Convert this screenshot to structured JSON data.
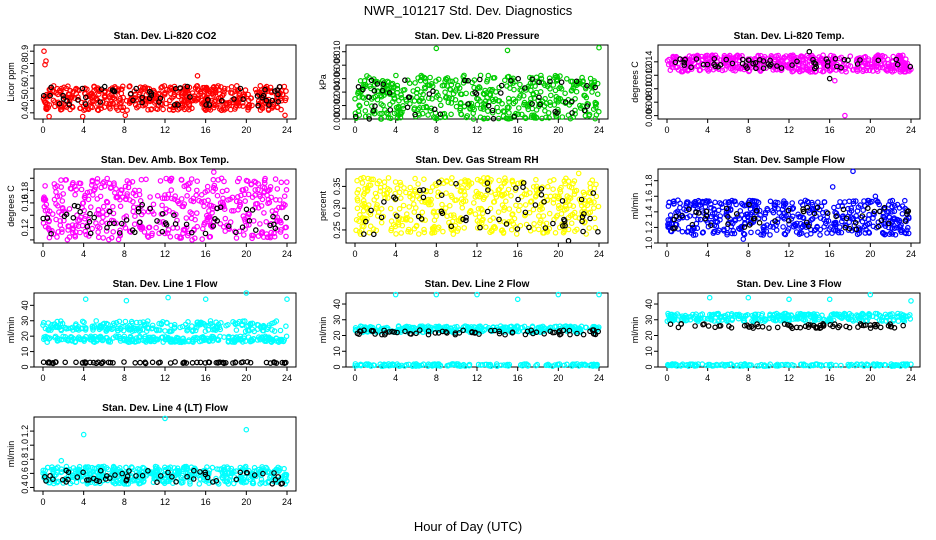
{
  "title": "NWR_101217  Std. Dev. Diagnostics",
  "xlabel": "Hour of Day (UTC)",
  "colors": {
    "red": "#ff0000",
    "green": "#00cc00",
    "magenta": "#ff00ff",
    "yellow": "#ffff00",
    "blue": "#0000ff",
    "cyan": "#00ffff",
    "black": "#000000"
  },
  "chart_data": [
    {
      "type": "scatter",
      "title": "Stan. Dev. Li-820 CO2",
      "ylabel": "Licor ppm",
      "xlim": [
        0,
        24
      ],
      "xticks": [
        0,
        4,
        8,
        12,
        16,
        20,
        24
      ],
      "ylim": [
        0.35,
        0.95
      ],
      "yticks": [
        0.4,
        0.5,
        0.6,
        0.7,
        0.8,
        0.9
      ],
      "ytick_labels": [
        "0.4",
        "0.5",
        "0.6",
        "0.7",
        "0.8",
        "0.9"
      ],
      "color": "red",
      "bands": [
        {
          "lo": 0.42,
          "hi": 0.62,
          "n": 520,
          "color": "red"
        },
        {
          "lo": 0.45,
          "hi": 0.62,
          "n": 55,
          "color": "black"
        }
      ],
      "outliers": [
        {
          "x": 0.1,
          "y": 0.9,
          "color": "red"
        },
        {
          "x": 0.3,
          "y": 0.82,
          "color": "red"
        },
        {
          "x": 0.2,
          "y": 0.79,
          "color": "red"
        },
        {
          "x": 0.6,
          "y": 0.37,
          "color": "red"
        },
        {
          "x": 3.9,
          "y": 0.37,
          "color": "red"
        },
        {
          "x": 8.1,
          "y": 0.38,
          "color": "red"
        },
        {
          "x": 15.2,
          "y": 0.7,
          "color": "red"
        },
        {
          "x": 23.8,
          "y": 0.38,
          "color": "red"
        }
      ]
    },
    {
      "type": "scatter",
      "title": "Stan. Dev. Li-820 Pressure",
      "ylabel": "kPa",
      "xlim": [
        0,
        24
      ],
      "xticks": [
        0,
        4,
        8,
        12,
        16,
        20,
        24
      ],
      "ylim": [
        0.0,
        0.011
      ],
      "yticks": [
        0.0,
        0.002,
        0.004,
        0.006,
        0.008,
        0.01
      ],
      "ytick_labels": [
        "0.000",
        "0.002",
        "0.004",
        "0.006",
        "0.008",
        "0.010"
      ],
      "color": "green",
      "bands": [
        {
          "lo": 0.0,
          "hi": 0.0065,
          "n": 480,
          "color": "green"
        },
        {
          "lo": 0.0,
          "hi": 0.006,
          "n": 55,
          "color": "black"
        }
      ],
      "outliers": [
        {
          "x": 8.0,
          "y": 0.0105,
          "color": "green"
        },
        {
          "x": 15.0,
          "y": 0.0102,
          "color": "green"
        },
        {
          "x": 24.0,
          "y": 0.0106,
          "color": "green"
        }
      ]
    },
    {
      "type": "scatter",
      "title": "Stan. Dev. Li-820 Temp.",
      "ylabel": "degrees C",
      "xlim": [
        0,
        24
      ],
      "xticks": [
        0,
        4,
        8,
        12,
        16,
        20,
        24
      ],
      "ylim": [
        0.0055,
        0.0165
      ],
      "yticks": [
        0.006,
        0.008,
        0.01,
        0.012,
        0.014
      ],
      "ytick_labels": [
        "0.006",
        "0.008",
        "0.010",
        "0.012",
        "0.014"
      ],
      "color": "magenta",
      "bands": [
        {
          "lo": 0.0125,
          "hi": 0.015,
          "n": 480,
          "color": "magenta"
        },
        {
          "lo": 0.013,
          "hi": 0.0145,
          "n": 55,
          "color": "black"
        }
      ],
      "outliers": [
        {
          "x": 14.0,
          "y": 0.0155,
          "color": "black"
        },
        {
          "x": 16.0,
          "y": 0.0115,
          "color": "black"
        },
        {
          "x": 17.5,
          "y": 0.006,
          "color": "magenta"
        },
        {
          "x": 16.5,
          "y": 0.0112,
          "color": "magenta"
        }
      ]
    },
    {
      "type": "scatter",
      "title": "Stan. Dev. Amb. Box Temp.",
      "ylabel": "degrees C",
      "xlim": [
        0,
        24
      ],
      "xticks": [
        0,
        4,
        8,
        12,
        16,
        20,
        24
      ],
      "ylim": [
        0.095,
        0.215
      ],
      "yticks": [
        0.1,
        0.12,
        0.14,
        0.16,
        0.18,
        0.2
      ],
      "ytick_labels": [
        "",
        "0.12",
        "",
        "0.16",
        "0.18",
        ""
      ],
      "color": "magenta",
      "bands": [
        {
          "lo": 0.1,
          "hi": 0.2,
          "n": 480,
          "color": "magenta"
        },
        {
          "lo": 0.11,
          "hi": 0.16,
          "n": 55,
          "color": "black"
        }
      ],
      "outliers": [
        {
          "x": 16.8,
          "y": 0.21,
          "color": "magenta"
        }
      ]
    },
    {
      "type": "scatter",
      "title": "Stan. Dev. Gas Stream RH",
      "ylabel": "percent",
      "xlim": [
        0,
        24
      ],
      "xticks": [
        0,
        4,
        8,
        12,
        16,
        20,
        24
      ],
      "ylim": [
        0.22,
        0.39
      ],
      "yticks": [
        0.25,
        0.3,
        0.35
      ],
      "ytick_labels": [
        "0.25",
        "0.30",
        "0.35"
      ],
      "color": "yellow",
      "bands": [
        {
          "lo": 0.24,
          "hi": 0.37,
          "n": 480,
          "color": "yellow"
        },
        {
          "lo": 0.24,
          "hi": 0.36,
          "n": 55,
          "color": "black"
        }
      ],
      "outliers": [
        {
          "x": 22.0,
          "y": 0.38,
          "color": "yellow"
        },
        {
          "x": 21.0,
          "y": 0.225,
          "color": "black"
        }
      ]
    },
    {
      "type": "scatter",
      "title": "Stan. Dev. Sample Flow",
      "ylabel": "ml/min",
      "xlim": [
        0,
        24
      ],
      "xticks": [
        0,
        4,
        8,
        12,
        16,
        20,
        24
      ],
      "ylim": [
        1.0,
        1.95
      ],
      "yticks": [
        1.0,
        1.2,
        1.4,
        1.6,
        1.8
      ],
      "ytick_labels": [
        "1.0",
        "1.2",
        "1.4",
        "1.6",
        "1.8"
      ],
      "color": "blue",
      "bands": [
        {
          "lo": 1.1,
          "hi": 1.55,
          "n": 480,
          "color": "blue"
        },
        {
          "lo": 1.15,
          "hi": 1.5,
          "n": 55,
          "color": "black"
        }
      ],
      "outliers": [
        {
          "x": 16.3,
          "y": 1.72,
          "color": "blue"
        },
        {
          "x": 18.3,
          "y": 1.92,
          "color": "blue"
        },
        {
          "x": 20.5,
          "y": 1.6,
          "color": "blue"
        },
        {
          "x": 7.5,
          "y": 1.05,
          "color": "blue"
        }
      ]
    },
    {
      "type": "scatter",
      "title": "Stan. Dev. Line 1 Flow",
      "ylabel": "ml/min",
      "xlim": [
        0,
        24
      ],
      "xticks": [
        0,
        4,
        8,
        12,
        16,
        20,
        24
      ],
      "ylim": [
        0,
        48
      ],
      "yticks": [
        0,
        10,
        20,
        30,
        40
      ],
      "ytick_labels": [
        "0",
        "10",
        "20",
        "30",
        "40"
      ],
      "color": "cyan",
      "bands": [
        {
          "lo": 23,
          "hi": 30,
          "n": 220,
          "color": "cyan"
        },
        {
          "lo": 16,
          "hi": 20,
          "n": 260,
          "color": "cyan"
        },
        {
          "lo": 2.3,
          "hi": 3.3,
          "n": 70,
          "color": "black"
        }
      ],
      "outliers": [
        {
          "x": 4.2,
          "y": 44,
          "color": "cyan"
        },
        {
          "x": 8.2,
          "y": 43,
          "color": "cyan"
        },
        {
          "x": 12.3,
          "y": 45,
          "color": "cyan"
        },
        {
          "x": 16.0,
          "y": 44,
          "color": "cyan"
        },
        {
          "x": 20.0,
          "y": 48,
          "color": "cyan"
        },
        {
          "x": 24.0,
          "y": 44,
          "color": "cyan"
        }
      ]
    },
    {
      "type": "scatter",
      "title": "Stan. Dev. Line 2 Flow",
      "ylabel": "ml/min",
      "xlim": [
        0,
        24
      ],
      "xticks": [
        0,
        4,
        8,
        12,
        16,
        20,
        24
      ],
      "ylim": [
        0,
        47
      ],
      "yticks": [
        0,
        10,
        20,
        30,
        40
      ],
      "ytick_labels": [
        "0",
        "10",
        "20",
        "30",
        "40"
      ],
      "color": "cyan",
      "bands": [
        {
          "lo": 22,
          "hi": 26,
          "n": 300,
          "color": "cyan"
        },
        {
          "lo": 20.5,
          "hi": 23.5,
          "n": 70,
          "color": "black"
        },
        {
          "lo": 0.5,
          "hi": 2,
          "n": 150,
          "color": "cyan"
        }
      ],
      "outliers": [
        {
          "x": 4.0,
          "y": 46,
          "color": "cyan"
        },
        {
          "x": 8.0,
          "y": 46,
          "color": "cyan"
        },
        {
          "x": 12.0,
          "y": 46,
          "color": "cyan"
        },
        {
          "x": 16.0,
          "y": 43,
          "color": "cyan"
        },
        {
          "x": 20.0,
          "y": 46,
          "color": "cyan"
        },
        {
          "x": 24.0,
          "y": 46,
          "color": "cyan"
        }
      ]
    },
    {
      "type": "scatter",
      "title": "Stan. Dev. Line 3 Flow",
      "ylabel": "ml/min",
      "xlim": [
        0,
        24
      ],
      "xticks": [
        0,
        4,
        8,
        12,
        16,
        20,
        24
      ],
      "ylim": [
        0,
        47
      ],
      "yticks": [
        0,
        10,
        20,
        30,
        40
      ],
      "ytick_labels": [
        "0",
        "10",
        "20",
        "30",
        "40"
      ],
      "color": "cyan",
      "bands": [
        {
          "lo": 29,
          "hi": 34,
          "n": 300,
          "color": "cyan"
        },
        {
          "lo": 24.5,
          "hi": 27.5,
          "n": 70,
          "color": "black"
        },
        {
          "lo": 0.5,
          "hi": 2,
          "n": 150,
          "color": "cyan"
        }
      ],
      "outliers": [
        {
          "x": 4.2,
          "y": 44,
          "color": "cyan"
        },
        {
          "x": 8.0,
          "y": 44,
          "color": "cyan"
        },
        {
          "x": 12.0,
          "y": 43,
          "color": "cyan"
        },
        {
          "x": 16.0,
          "y": 43,
          "color": "cyan"
        },
        {
          "x": 20.0,
          "y": 46,
          "color": "cyan"
        },
        {
          "x": 24.0,
          "y": 42,
          "color": "cyan"
        }
      ]
    },
    {
      "type": "scatter",
      "title": "Stan. Dev. Line 4 (LT) Flow",
      "ylabel": "ml/min",
      "xlim": [
        0,
        24
      ],
      "xticks": [
        0,
        4,
        8,
        12,
        16,
        20,
        24
      ],
      "ylim": [
        0.35,
        1.4
      ],
      "yticks": [
        0.4,
        0.6,
        0.8,
        1.0,
        1.2
      ],
      "ytick_labels": [
        "0.4",
        "0.6",
        "0.8",
        "1.0",
        "1.2"
      ],
      "color": "cyan",
      "bands": [
        {
          "lo": 0.45,
          "hi": 0.7,
          "n": 480,
          "color": "cyan"
        },
        {
          "lo": 0.45,
          "hi": 0.65,
          "n": 55,
          "color": "black"
        }
      ],
      "outliers": [
        {
          "x": 4.0,
          "y": 1.15,
          "color": "cyan"
        },
        {
          "x": 12.0,
          "y": 1.38,
          "color": "cyan"
        },
        {
          "x": 20.0,
          "y": 1.22,
          "color": "cyan"
        },
        {
          "x": 1.8,
          "y": 0.78,
          "color": "cyan"
        }
      ]
    }
  ]
}
